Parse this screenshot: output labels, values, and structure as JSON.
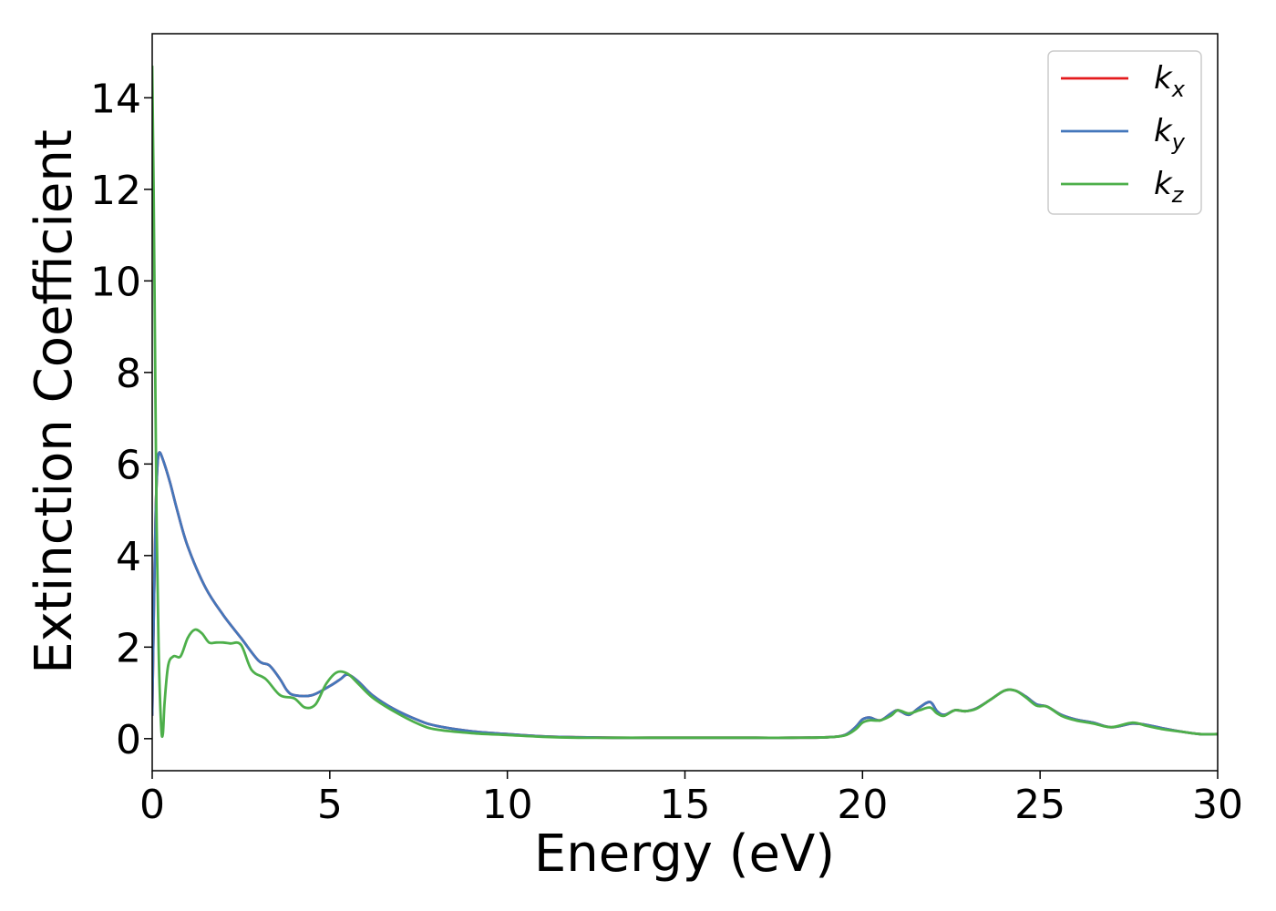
{
  "chart_data": {
    "type": "line",
    "xlabel": "Energy (eV)",
    "ylabel": "Extinction Coefficient",
    "xlim": [
      0,
      30
    ],
    "ylim": [
      -0.7,
      15.4
    ],
    "x_ticks": [
      0,
      5,
      10,
      15,
      20,
      25,
      30
    ],
    "y_ticks": [
      0,
      2,
      4,
      6,
      8,
      10,
      12,
      14
    ],
    "grid": false,
    "legend_position": "top-right",
    "series": [
      {
        "name": "k_x",
        "label_main": "k",
        "label_sub": "x",
        "color": "#e41a1c",
        "x": [
          0.0,
          0.05,
          0.1,
          0.15,
          0.2,
          0.3,
          0.5,
          0.7,
          1.0,
          1.5,
          2.0,
          2.5,
          3.0,
          3.3,
          3.6,
          3.8,
          4.0,
          4.5,
          5.0,
          5.3,
          5.5,
          5.8,
          6.2,
          6.8,
          7.5,
          8.0,
          9.0,
          10.0,
          11.0,
          12.0,
          13.0,
          14.0,
          15.0,
          16.0,
          17.0,
          18.0,
          19.0,
          19.5,
          19.8,
          20.0,
          20.2,
          20.5,
          20.8,
          21.0,
          21.3,
          21.6,
          21.9,
          22.1,
          22.3,
          22.6,
          22.9,
          23.2,
          23.6,
          24.0,
          24.3,
          24.6,
          24.9,
          25.2,
          25.6,
          26.0,
          26.5,
          27.0,
          27.6,
          28.0,
          28.5,
          29.0,
          29.5,
          30.0
        ],
        "y": [
          0.5,
          3.0,
          5.0,
          6.0,
          6.25,
          6.1,
          5.6,
          5.0,
          4.2,
          3.3,
          2.7,
          2.2,
          1.7,
          1.6,
          1.3,
          1.05,
          0.95,
          0.95,
          1.15,
          1.3,
          1.4,
          1.25,
          0.95,
          0.65,
          0.4,
          0.28,
          0.16,
          0.1,
          0.05,
          0.03,
          0.02,
          0.02,
          0.02,
          0.02,
          0.02,
          0.02,
          0.03,
          0.08,
          0.25,
          0.42,
          0.46,
          0.4,
          0.55,
          0.62,
          0.52,
          0.68,
          0.8,
          0.6,
          0.52,
          0.62,
          0.6,
          0.66,
          0.85,
          1.05,
          1.05,
          0.92,
          0.75,
          0.7,
          0.52,
          0.42,
          0.35,
          0.25,
          0.33,
          0.3,
          0.22,
          0.15,
          0.1,
          0.1
        ]
      },
      {
        "name": "k_y",
        "label_main": "k",
        "label_sub": "y",
        "color": "#4477bb",
        "x": [
          0.0,
          0.05,
          0.1,
          0.15,
          0.2,
          0.3,
          0.5,
          0.7,
          1.0,
          1.5,
          2.0,
          2.5,
          3.0,
          3.3,
          3.6,
          3.8,
          4.0,
          4.5,
          5.0,
          5.3,
          5.5,
          5.8,
          6.2,
          6.8,
          7.5,
          8.0,
          9.0,
          10.0,
          11.0,
          12.0,
          13.0,
          14.0,
          15.0,
          16.0,
          17.0,
          18.0,
          19.0,
          19.5,
          19.8,
          20.0,
          20.2,
          20.5,
          20.8,
          21.0,
          21.3,
          21.6,
          21.9,
          22.1,
          22.3,
          22.6,
          22.9,
          23.2,
          23.6,
          24.0,
          24.3,
          24.6,
          24.9,
          25.2,
          25.6,
          26.0,
          26.5,
          27.0,
          27.6,
          28.0,
          28.5,
          29.0,
          29.5,
          30.0
        ],
        "y": [
          0.5,
          3.0,
          5.0,
          6.0,
          6.25,
          6.1,
          5.6,
          5.0,
          4.2,
          3.3,
          2.7,
          2.2,
          1.7,
          1.6,
          1.3,
          1.05,
          0.95,
          0.95,
          1.15,
          1.3,
          1.4,
          1.25,
          0.95,
          0.65,
          0.4,
          0.28,
          0.16,
          0.1,
          0.05,
          0.03,
          0.02,
          0.02,
          0.02,
          0.02,
          0.02,
          0.02,
          0.03,
          0.08,
          0.25,
          0.42,
          0.46,
          0.4,
          0.55,
          0.62,
          0.52,
          0.68,
          0.8,
          0.6,
          0.52,
          0.62,
          0.6,
          0.66,
          0.85,
          1.05,
          1.05,
          0.92,
          0.75,
          0.7,
          0.52,
          0.42,
          0.35,
          0.25,
          0.33,
          0.3,
          0.22,
          0.15,
          0.1,
          0.1
        ]
      },
      {
        "name": "k_z",
        "label_main": "k",
        "label_sub": "z",
        "color": "#4daf4a",
        "x": [
          0.0,
          0.04,
          0.08,
          0.12,
          0.18,
          0.25,
          0.3,
          0.35,
          0.45,
          0.6,
          0.8,
          1.0,
          1.2,
          1.4,
          1.6,
          1.8,
          2.0,
          2.2,
          2.5,
          2.8,
          3.2,
          3.6,
          4.0,
          4.3,
          4.6,
          4.9,
          5.2,
          5.5,
          5.8,
          6.2,
          6.8,
          7.5,
          8.0,
          9.0,
          10.0,
          11.0,
          12.0,
          13.0,
          14.0,
          15.0,
          16.0,
          17.0,
          18.0,
          19.0,
          19.5,
          19.8,
          20.0,
          20.2,
          20.5,
          20.8,
          21.0,
          21.3,
          21.6,
          21.9,
          22.1,
          22.3,
          22.6,
          22.9,
          23.2,
          23.6,
          24.0,
          24.3,
          24.6,
          24.9,
          25.2,
          25.6,
          26.0,
          26.5,
          27.0,
          27.6,
          28.0,
          28.5,
          29.0,
          29.5,
          30.0
        ],
        "y": [
          14.7,
          12.0,
          8.5,
          5.0,
          2.0,
          0.3,
          0.1,
          0.8,
          1.6,
          1.8,
          1.8,
          2.2,
          2.38,
          2.3,
          2.1,
          2.1,
          2.1,
          2.08,
          2.05,
          1.5,
          1.3,
          0.95,
          0.88,
          0.68,
          0.75,
          1.2,
          1.45,
          1.42,
          1.2,
          0.9,
          0.6,
          0.32,
          0.2,
          0.12,
          0.08,
          0.04,
          0.02,
          0.02,
          0.02,
          0.02,
          0.02,
          0.02,
          0.02,
          0.03,
          0.07,
          0.2,
          0.35,
          0.4,
          0.4,
          0.5,
          0.62,
          0.55,
          0.62,
          0.68,
          0.55,
          0.5,
          0.62,
          0.6,
          0.65,
          0.85,
          1.05,
          1.05,
          0.9,
          0.72,
          0.7,
          0.5,
          0.4,
          0.33,
          0.25,
          0.35,
          0.28,
          0.2,
          0.15,
          0.1,
          0.1
        ]
      }
    ]
  }
}
